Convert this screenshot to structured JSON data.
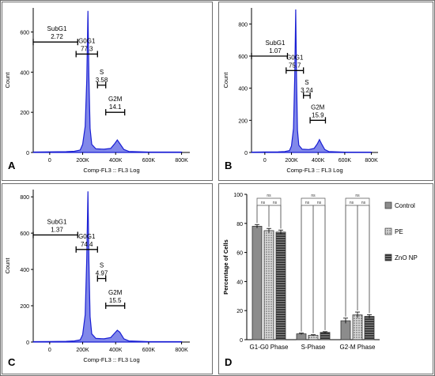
{
  "panel_labels": [
    "A",
    "B",
    "C",
    "D"
  ],
  "chart_data": [
    {
      "type": "area",
      "panel": "A",
      "x_axis_title": "Comp-FL3 :: FL3 Log",
      "y_axis_title": "Count",
      "x_ticks": [
        "0",
        "200K",
        "400K",
        "600K",
        "800K"
      ],
      "x_tick_values": [
        0,
        200000,
        400000,
        600000,
        800000
      ],
      "y_ticks": [
        "0",
        "200",
        "400",
        "600"
      ],
      "y_tick_values": [
        0,
        200,
        400,
        600
      ],
      "xlim": [
        -100000,
        850000
      ],
      "ylim": [
        0,
        720
      ],
      "histogram": [
        [
          -100000,
          2
        ],
        [
          0,
          3
        ],
        [
          100000,
          4
        ],
        [
          150000,
          6
        ],
        [
          185000,
          12
        ],
        [
          200000,
          40
        ],
        [
          215000,
          130
        ],
        [
          225000,
          360
        ],
        [
          232000,
          705
        ],
        [
          238000,
          380
        ],
        [
          245000,
          120
        ],
        [
          255000,
          40
        ],
        [
          280000,
          18
        ],
        [
          330000,
          16
        ],
        [
          370000,
          20
        ],
        [
          395000,
          45
        ],
        [
          410000,
          62
        ],
        [
          425000,
          45
        ],
        [
          450000,
          15
        ],
        [
          480000,
          5
        ],
        [
          600000,
          2
        ],
        [
          800000,
          2
        ]
      ],
      "gates": [
        {
          "name": "SubG1",
          "value": "2.72",
          "range": [
            -100000,
            170000
          ],
          "y": 550
        },
        {
          "name": "G0G1",
          "value": "77.3",
          "range": [
            160000,
            290000
          ],
          "y": 490
        },
        {
          "name": "S",
          "value": "3.58",
          "range": [
            290000,
            340000
          ],
          "y": 335
        },
        {
          "name": "G2M",
          "value": "14.1",
          "range": [
            340000,
            455000
          ],
          "y": 200
        }
      ]
    },
    {
      "type": "area",
      "panel": "B",
      "x_axis_title": "Comp-FL3 :: FL3 Log",
      "y_axis_title": "Count",
      "x_ticks": [
        "0",
        "200K",
        "400K",
        "600K",
        "800K"
      ],
      "x_tick_values": [
        0,
        200000,
        400000,
        600000,
        800000
      ],
      "y_ticks": [
        "0",
        "200",
        "400",
        "600",
        "800"
      ],
      "y_tick_values": [
        0,
        200,
        400,
        600,
        800
      ],
      "xlim": [
        -100000,
        850000
      ],
      "ylim": [
        0,
        900
      ],
      "histogram": [
        [
          -100000,
          2
        ],
        [
          0,
          3
        ],
        [
          100000,
          4
        ],
        [
          150000,
          6
        ],
        [
          185000,
          12
        ],
        [
          200000,
          40
        ],
        [
          215000,
          150
        ],
        [
          225000,
          480
        ],
        [
          232000,
          890
        ],
        [
          238000,
          470
        ],
        [
          245000,
          140
        ],
        [
          255000,
          45
        ],
        [
          280000,
          20
        ],
        [
          330000,
          18
        ],
        [
          370000,
          25
        ],
        [
          395000,
          55
        ],
        [
          410000,
          80
        ],
        [
          425000,
          55
        ],
        [
          450000,
          18
        ],
        [
          480000,
          6
        ],
        [
          600000,
          2
        ],
        [
          800000,
          2
        ]
      ],
      "gates": [
        {
          "name": "SubG1",
          "value": "1.07",
          "range": [
            -100000,
            170000
          ],
          "y": 600
        },
        {
          "name": "G0G1",
          "value": "75.7",
          "range": [
            160000,
            290000
          ],
          "y": 510
        },
        {
          "name": "S",
          "value": "3.24",
          "range": [
            290000,
            340000
          ],
          "y": 355
        },
        {
          "name": "G2M",
          "value": "15.9",
          "range": [
            340000,
            455000
          ],
          "y": 200
        }
      ]
    },
    {
      "type": "area",
      "panel": "C",
      "x_axis_title": "Comp-FL3 :: FL3 Log",
      "y_axis_title": "Count",
      "x_ticks": [
        "0",
        "200K",
        "400K",
        "600K",
        "800K"
      ],
      "x_tick_values": [
        0,
        200000,
        400000,
        600000,
        800000
      ],
      "y_ticks": [
        "0",
        "200",
        "400",
        "600",
        "800"
      ],
      "y_tick_values": [
        0,
        200,
        400,
        600,
        800
      ],
      "xlim": [
        -100000,
        850000
      ],
      "ylim": [
        0,
        840
      ],
      "histogram": [
        [
          -100000,
          2
        ],
        [
          0,
          3
        ],
        [
          100000,
          4
        ],
        [
          150000,
          6
        ],
        [
          185000,
          12
        ],
        [
          200000,
          40
        ],
        [
          215000,
          150
        ],
        [
          225000,
          460
        ],
        [
          232000,
          830
        ],
        [
          238000,
          450
        ],
        [
          245000,
          140
        ],
        [
          255000,
          45
        ],
        [
          280000,
          20
        ],
        [
          330000,
          18
        ],
        [
          370000,
          25
        ],
        [
          395000,
          50
        ],
        [
          410000,
          65
        ],
        [
          425000,
          55
        ],
        [
          450000,
          18
        ],
        [
          480000,
          6
        ],
        [
          600000,
          2
        ],
        [
          800000,
          2
        ]
      ],
      "gates": [
        {
          "name": "SubG1",
          "value": "1.37",
          "range": [
            -100000,
            170000
          ],
          "y": 590
        },
        {
          "name": "G0G1",
          "value": "74.4",
          "range": [
            160000,
            290000
          ],
          "y": 510
        },
        {
          "name": "S",
          "value": "4.97",
          "range": [
            290000,
            340000
          ],
          "y": 350
        },
        {
          "name": "G2M",
          "value": "15.5",
          "range": [
            340000,
            455000
          ],
          "y": 200
        }
      ]
    },
    {
      "type": "bar",
      "panel": "D",
      "categories": [
        "G1-G0 Phase",
        "S-Phase",
        "G2-M Phase"
      ],
      "ylabel": "Percentage of Cells",
      "ylim": [
        0,
        100
      ],
      "y_ticks": [
        "0",
        "20",
        "40",
        "60",
        "80",
        "100"
      ],
      "y_tick_values": [
        0,
        20,
        40,
        60,
        80,
        100
      ],
      "series": [
        {
          "name": "Control",
          "values": [
            78,
            4,
            13
          ],
          "errors": [
            1.2,
            0.5,
            1.8
          ],
          "fill": "solid"
        },
        {
          "name": "PE",
          "values": [
            75,
            3,
            17
          ],
          "errors": [
            1.5,
            0.4,
            2.0
          ],
          "fill": "dots"
        },
        {
          "name": "ZnO NP",
          "values": [
            74,
            5,
            16
          ],
          "errors": [
            1.4,
            0.5,
            1.2
          ],
          "fill": "stripes"
        }
      ],
      "significance_label": "ns",
      "legend_position": "top-right"
    }
  ],
  "colors": {
    "histogram_fill": "#6b73e6",
    "histogram_stroke": "#1a1fd4",
    "bar_fill": "#8c8c8c",
    "bar_stroke": "#333333"
  }
}
